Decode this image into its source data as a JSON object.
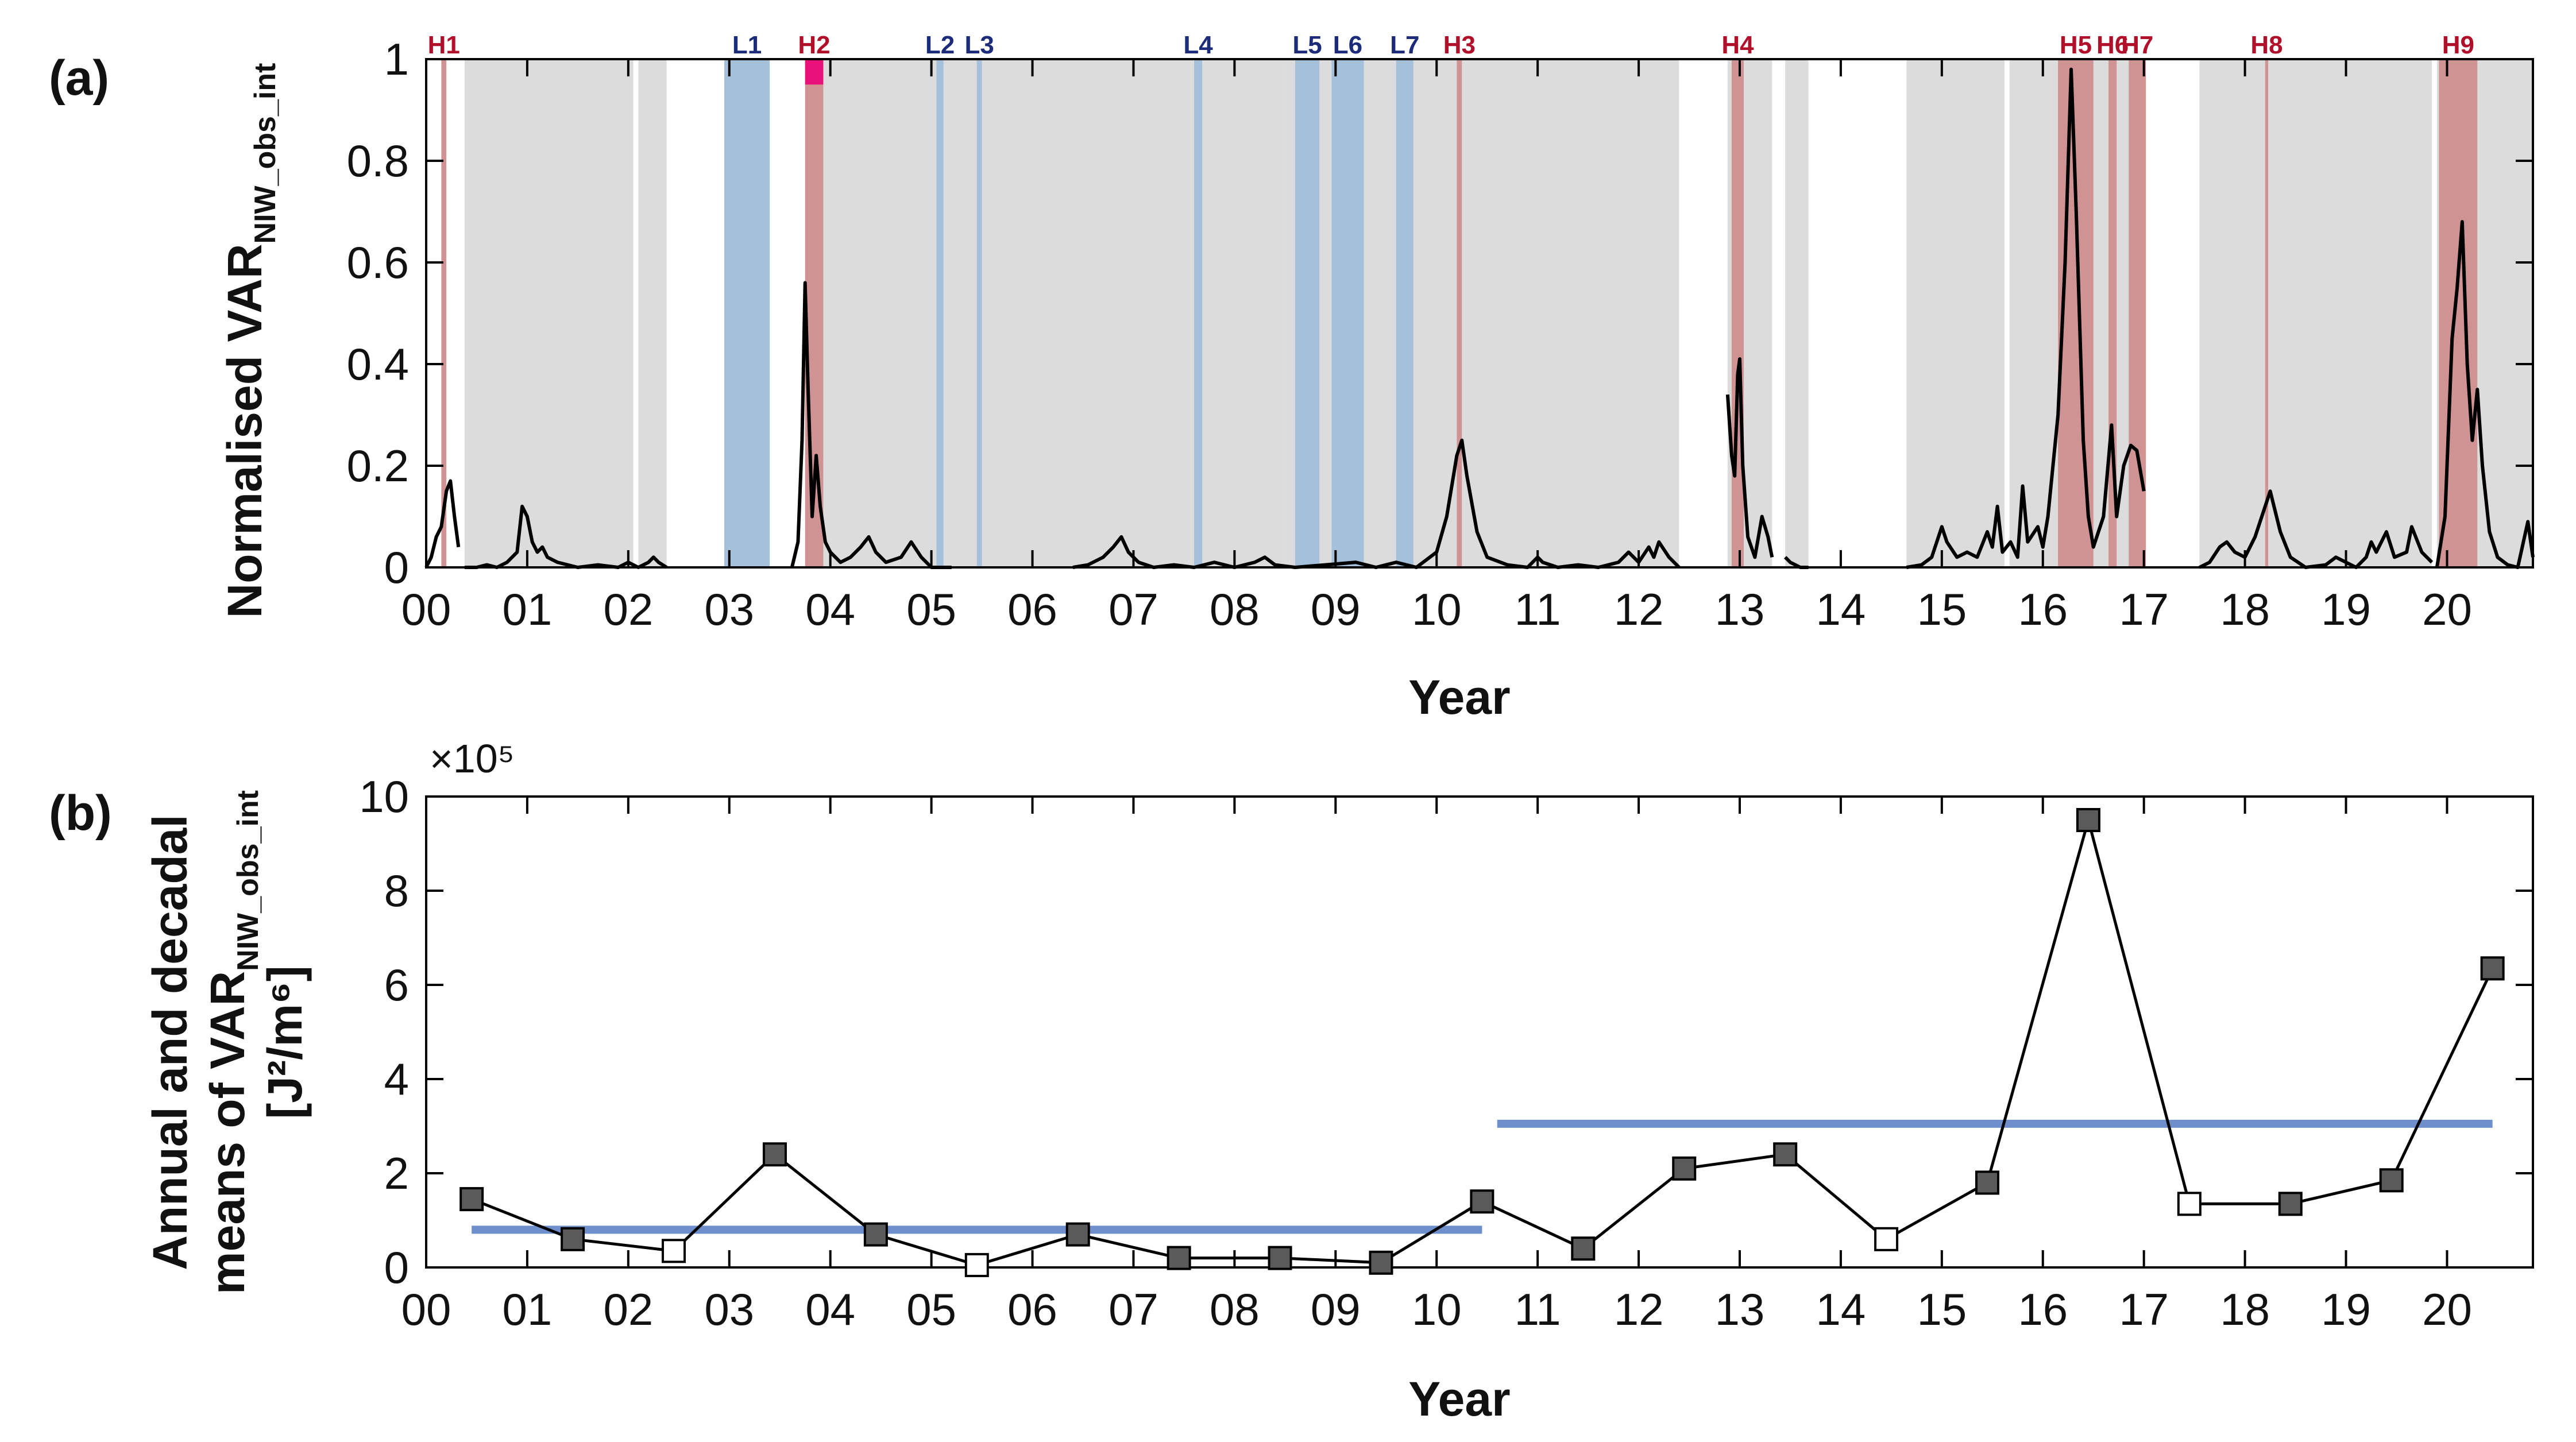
{
  "colors": {
    "gap": "#dcdcdc",
    "high": "#cf9393",
    "high_peak": "#e8127a",
    "low": "#a5c0da",
    "line": "#000000",
    "marker_fill": "#5a5a5a",
    "marker_open": "#ffffff",
    "decadal": "#6f8fcc",
    "event_h_text": "#b0102a",
    "event_l_text": "#1c2b7a"
  },
  "chart_data": [
    {
      "panel": "(a)",
      "type": "line",
      "ylabel_main": "Normalised VAR",
      "ylabel_sub": "NIW_obs_int",
      "xlabel": "Year",
      "xlim": [
        0,
        20.85
      ],
      "ylim": [
        0,
        1
      ],
      "x_ticks": [
        0,
        1,
        2,
        3,
        4,
        5,
        6,
        7,
        8,
        9,
        10,
        11,
        12,
        13,
        14,
        15,
        16,
        17,
        18,
        19,
        20
      ],
      "x_tick_labels": [
        "00",
        "01",
        "02",
        "03",
        "04",
        "05",
        "06",
        "07",
        "08",
        "09",
        "10",
        "11",
        "12",
        "13",
        "14",
        "15",
        "16",
        "17",
        "18",
        "19",
        "20"
      ],
      "y_ticks": [
        0,
        0.2,
        0.4,
        0.6,
        0.8,
        1
      ],
      "y_tick_labels": [
        "0",
        "0.2",
        "0.4",
        "0.6",
        "0.8",
        "1"
      ],
      "gap_periods": [
        [
          0.38,
          2.05
        ],
        [
          2.1,
          2.38
        ],
        [
          3.78,
          6.4
        ],
        [
          6.4,
          8.5
        ],
        [
          8.5,
          12.4
        ],
        [
          12.88,
          13.32
        ],
        [
          13.45,
          13.68
        ],
        [
          14.65,
          15.62
        ],
        [
          15.67,
          17.0
        ],
        [
          17.55,
          19.85
        ],
        [
          19.9,
          20.85
        ]
      ],
      "events": [
        {
          "label": "H1",
          "kind": "high",
          "start": 0.15,
          "end": 0.2
        },
        {
          "label": "L1",
          "kind": "low",
          "start": 2.95,
          "end": 3.4
        },
        {
          "label": "H2",
          "kind": "high",
          "start": 3.75,
          "end": 3.93
        },
        {
          "label": "L2",
          "kind": "low",
          "start": 5.05,
          "end": 5.12
        },
        {
          "label": "L3",
          "kind": "low",
          "start": 5.45,
          "end": 5.5
        },
        {
          "label": "L4",
          "kind": "low",
          "start": 7.6,
          "end": 7.68
        },
        {
          "label": "L5",
          "kind": "low",
          "start": 8.6,
          "end": 8.84
        },
        {
          "label": "L6",
          "kind": "low",
          "start": 8.96,
          "end": 9.28
        },
        {
          "label": "L7",
          "kind": "low",
          "start": 9.6,
          "end": 9.77
        },
        {
          "label": "H3",
          "kind": "high",
          "start": 10.2,
          "end": 10.25
        },
        {
          "label": "H4",
          "kind": "high",
          "start": 12.92,
          "end": 13.04
        },
        {
          "label": "H5",
          "kind": "high",
          "start": 16.15,
          "end": 16.5
        },
        {
          "label": "H6",
          "kind": "high",
          "start": 16.65,
          "end": 16.73
        },
        {
          "label": "H7",
          "kind": "high",
          "start": 16.85,
          "end": 17.02
        },
        {
          "label": "H8",
          "kind": "high",
          "start": 18.2,
          "end": 18.23
        },
        {
          "label": "H9",
          "kind": "high",
          "start": 19.92,
          "end": 20.3
        }
      ],
      "high_peak_marker": {
        "start": 3.75,
        "end": 3.93,
        "y_from": 0.95,
        "y_to": 1.0
      },
      "series": [
        {
          "name": "Normalised VAR NIW_obs_int",
          "points": [
            [
              0.0,
              0.0
            ],
            [
              0.05,
              0.02
            ],
            [
              0.1,
              0.06
            ],
            [
              0.15,
              0.08
            ],
            [
              0.2,
              0.15
            ],
            [
              0.24,
              0.17
            ],
            [
              0.28,
              0.1
            ],
            [
              0.32,
              0.04
            ],
            null,
            [
              0.38,
              0.0
            ],
            [
              0.5,
              0.0
            ],
            [
              0.6,
              0.005
            ],
            [
              0.7,
              0.0
            ],
            [
              0.8,
              0.01
            ],
            [
              0.9,
              0.03
            ],
            [
              0.95,
              0.12
            ],
            [
              1.0,
              0.1
            ],
            [
              1.05,
              0.05
            ],
            [
              1.1,
              0.03
            ],
            [
              1.15,
              0.04
            ],
            [
              1.2,
              0.02
            ],
            [
              1.3,
              0.01
            ],
            [
              1.5,
              0.0
            ],
            [
              1.7,
              0.005
            ],
            [
              1.9,
              0.0
            ],
            [
              2.0,
              0.01
            ],
            [
              2.1,
              0.0
            ],
            [
              2.2,
              0.01
            ],
            [
              2.25,
              0.02
            ],
            [
              2.3,
              0.01
            ],
            [
              2.38,
              0.0
            ],
            null,
            [
              3.62,
              0.0
            ],
            [
              3.68,
              0.05
            ],
            [
              3.72,
              0.25
            ],
            [
              3.75,
              0.56
            ],
            [
              3.78,
              0.35
            ],
            [
              3.82,
              0.1
            ],
            [
              3.86,
              0.22
            ],
            [
              3.9,
              0.12
            ],
            [
              3.95,
              0.05
            ],
            [
              4.0,
              0.03
            ],
            [
              4.1,
              0.01
            ],
            [
              4.2,
              0.02
            ],
            [
              4.3,
              0.04
            ],
            [
              4.38,
              0.06
            ],
            [
              4.45,
              0.03
            ],
            [
              4.55,
              0.01
            ],
            [
              4.7,
              0.02
            ],
            [
              4.8,
              0.05
            ],
            [
              4.9,
              0.02
            ],
            [
              5.0,
              0.0
            ],
            [
              5.2,
              0.0
            ],
            null,
            [
              6.4,
              0.0
            ],
            [
              6.55,
              0.005
            ],
            [
              6.7,
              0.02
            ],
            [
              6.8,
              0.04
            ],
            [
              6.88,
              0.06
            ],
            [
              6.95,
              0.03
            ],
            [
              7.05,
              0.01
            ],
            [
              7.2,
              0.0
            ],
            [
              7.4,
              0.005
            ],
            [
              7.6,
              0.0
            ],
            [
              7.8,
              0.01
            ],
            [
              8.0,
              0.0
            ],
            [
              8.2,
              0.01
            ],
            [
              8.3,
              0.02
            ],
            [
              8.4,
              0.005
            ],
            [
              8.6,
              0.0
            ],
            [
              8.9,
              0.005
            ],
            [
              9.2,
              0.01
            ],
            [
              9.4,
              0.0
            ],
            [
              9.6,
              0.01
            ],
            [
              9.8,
              0.0
            ],
            [
              10.0,
              0.03
            ],
            [
              10.1,
              0.1
            ],
            [
              10.2,
              0.22
            ],
            [
              10.25,
              0.25
            ],
            [
              10.3,
              0.18
            ],
            [
              10.4,
              0.07
            ],
            [
              10.5,
              0.02
            ],
            [
              10.7,
              0.005
            ],
            [
              10.9,
              0.0
            ],
            [
              11.0,
              0.02
            ],
            [
              11.05,
              0.01
            ],
            [
              11.2,
              0.0
            ],
            [
              11.4,
              0.005
            ],
            [
              11.6,
              0.0
            ],
            [
              11.8,
              0.01
            ],
            [
              11.9,
              0.03
            ],
            [
              12.0,
              0.01
            ],
            [
              12.1,
              0.04
            ],
            [
              12.15,
              0.02
            ],
            [
              12.2,
              0.05
            ],
            [
              12.3,
              0.02
            ],
            [
              12.4,
              0.0
            ],
            null,
            [
              12.88,
              0.34
            ],
            [
              12.92,
              0.22
            ],
            [
              12.95,
              0.18
            ],
            [
              12.98,
              0.38
            ],
            [
              13.0,
              0.41
            ],
            [
              13.03,
              0.2
            ],
            [
              13.08,
              0.06
            ],
            [
              13.15,
              0.02
            ],
            [
              13.22,
              0.1
            ],
            [
              13.28,
              0.06
            ],
            [
              13.32,
              0.02
            ],
            null,
            [
              13.45,
              0.02
            ],
            [
              13.5,
              0.01
            ],
            [
              13.6,
              0.0
            ],
            [
              13.68,
              0.0
            ],
            null,
            [
              14.65,
              0.0
            ],
            [
              14.8,
              0.005
            ],
            [
              14.9,
              0.02
            ],
            [
              15.0,
              0.08
            ],
            [
              15.05,
              0.05
            ],
            [
              15.15,
              0.02
            ],
            [
              15.25,
              0.03
            ],
            [
              15.35,
              0.02
            ],
            [
              15.45,
              0.07
            ],
            [
              15.5,
              0.04
            ],
            [
              15.55,
              0.12
            ],
            [
              15.6,
              0.03
            ],
            [
              15.68,
              0.05
            ],
            [
              15.75,
              0.02
            ],
            [
              15.8,
              0.16
            ],
            [
              15.85,
              0.05
            ],
            [
              15.95,
              0.08
            ],
            [
              16.0,
              0.04
            ],
            [
              16.05,
              0.1
            ],
            [
              16.15,
              0.3
            ],
            [
              16.22,
              0.6
            ],
            [
              16.28,
              0.98
            ],
            [
              16.33,
              0.7
            ],
            [
              16.4,
              0.25
            ],
            [
              16.45,
              0.1
            ],
            [
              16.5,
              0.04
            ],
            [
              16.6,
              0.1
            ],
            [
              16.68,
              0.28
            ],
            [
              16.73,
              0.1
            ],
            [
              16.8,
              0.2
            ],
            [
              16.87,
              0.24
            ],
            [
              16.93,
              0.23
            ],
            [
              17.0,
              0.15
            ],
            null,
            [
              17.55,
              0.0
            ],
            [
              17.65,
              0.01
            ],
            [
              17.75,
              0.04
            ],
            [
              17.82,
              0.05
            ],
            [
              17.9,
              0.03
            ],
            [
              18.0,
              0.02
            ],
            [
              18.1,
              0.06
            ],
            [
              18.2,
              0.12
            ],
            [
              18.25,
              0.15
            ],
            [
              18.35,
              0.07
            ],
            [
              18.45,
              0.02
            ],
            [
              18.6,
              0.0
            ],
            [
              18.8,
              0.005
            ],
            [
              18.9,
              0.02
            ],
            [
              19.0,
              0.01
            ],
            [
              19.1,
              0.0
            ],
            [
              19.2,
              0.02
            ],
            [
              19.25,
              0.05
            ],
            [
              19.3,
              0.03
            ],
            [
              19.4,
              0.07
            ],
            [
              19.48,
              0.02
            ],
            [
              19.6,
              0.03
            ],
            [
              19.65,
              0.08
            ],
            [
              19.75,
              0.03
            ],
            [
              19.85,
              0.01
            ],
            null,
            [
              19.9,
              0.0
            ],
            [
              19.98,
              0.1
            ],
            [
              20.05,
              0.45
            ],
            [
              20.1,
              0.55
            ],
            [
              20.15,
              0.68
            ],
            [
              20.2,
              0.4
            ],
            [
              20.25,
              0.25
            ],
            [
              20.3,
              0.35
            ],
            [
              20.35,
              0.2
            ],
            [
              20.42,
              0.07
            ],
            [
              20.5,
              0.02
            ],
            [
              20.6,
              0.005
            ],
            [
              20.7,
              0.0
            ],
            [
              20.8,
              0.09
            ],
            [
              20.85,
              0.02
            ]
          ]
        }
      ]
    },
    {
      "panel": "(b)",
      "type": "line",
      "ylabel_line1": "Annual and decadal",
      "ylabel_line2": "means of VAR",
      "ylabel_sub": "NIW_obs_int",
      "ylabel_units": "[J²/m⁶]",
      "xlabel": "Year",
      "multiplier": "×10⁵",
      "xlim": [
        0,
        20.85
      ],
      "ylim": [
        0,
        10
      ],
      "x_ticks": [
        0,
        1,
        2,
        3,
        4,
        5,
        6,
        7,
        8,
        9,
        10,
        11,
        12,
        13,
        14,
        15,
        16,
        17,
        18,
        19,
        20
      ],
      "x_tick_labels": [
        "00",
        "01",
        "02",
        "03",
        "04",
        "05",
        "06",
        "07",
        "08",
        "09",
        "10",
        "11",
        "12",
        "13",
        "14",
        "15",
        "16",
        "17",
        "18",
        "19",
        "20"
      ],
      "y_ticks": [
        0,
        2,
        4,
        6,
        8,
        10
      ],
      "y_tick_labels": [
        "0",
        "2",
        "4",
        "6",
        "8",
        "10"
      ],
      "annual_means": [
        {
          "x": 0.45,
          "y": 1.45,
          "filled": true
        },
        {
          "x": 1.45,
          "y": 0.6,
          "filled": true
        },
        {
          "x": 2.45,
          "y": 0.35,
          "filled": false
        },
        {
          "x": 3.45,
          "y": 2.4,
          "filled": true
        },
        {
          "x": 4.45,
          "y": 0.7,
          "filled": true
        },
        {
          "x": 5.45,
          "y": 0.05,
          "filled": false
        },
        {
          "x": 6.45,
          "y": 0.7,
          "filled": true
        },
        {
          "x": 7.45,
          "y": 0.2,
          "filled": true
        },
        {
          "x": 8.45,
          "y": 0.2,
          "filled": true
        },
        {
          "x": 9.45,
          "y": 0.1,
          "filled": true
        },
        {
          "x": 10.45,
          "y": 1.4,
          "filled": true
        },
        {
          "x": 11.45,
          "y": 0.4,
          "filled": true
        },
        {
          "x": 12.45,
          "y": 2.1,
          "filled": true
        },
        {
          "x": 13.45,
          "y": 2.4,
          "filled": true
        },
        {
          "x": 14.45,
          "y": 0.6,
          "filled": false
        },
        {
          "x": 15.45,
          "y": 1.8,
          "filled": true
        },
        {
          "x": 16.45,
          "y": 9.5,
          "filled": true
        },
        {
          "x": 17.45,
          "y": 1.35,
          "filled": false
        },
        {
          "x": 18.45,
          "y": 1.35,
          "filled": true
        },
        {
          "x": 19.45,
          "y": 1.85,
          "filled": true
        },
        {
          "x": 20.45,
          "y": 6.35,
          "filled": true
        }
      ],
      "decadal_means": [
        {
          "x_start": 0.45,
          "x_end": 10.45,
          "y": 0.8
        },
        {
          "x_start": 10.6,
          "x_end": 20.45,
          "y": 3.05
        }
      ]
    }
  ]
}
